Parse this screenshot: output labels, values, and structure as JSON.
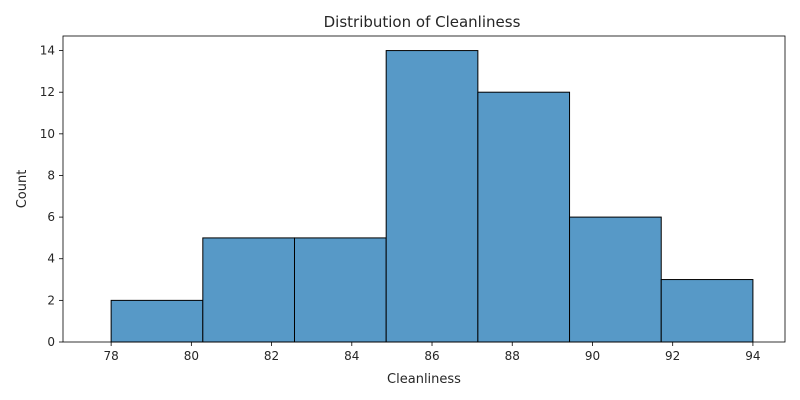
{
  "chart_data": {
    "type": "bar",
    "subtype": "histogram",
    "title": "Distribution of Cleanliness",
    "xlabel": "Cleanliness",
    "ylabel": "Count",
    "bin_edges": [
      78.0,
      80.2857,
      82.5714,
      84.8571,
      87.1429,
      89.4286,
      91.7143,
      94.0
    ],
    "values": [
      2,
      5,
      5,
      14,
      12,
      6,
      3
    ],
    "xlim": [
      76.8,
      94.8
    ],
    "ylim": [
      0,
      14.7
    ],
    "xticks": [
      "78",
      "80",
      "82",
      "84",
      "86",
      "88",
      "90",
      "92",
      "94"
    ],
    "yticks": [
      "0",
      "2",
      "4",
      "6",
      "8",
      "10",
      "12",
      "14"
    ],
    "bar_color": "#5799c7",
    "edge_color": "#000000",
    "grid": false,
    "legend": "none"
  }
}
